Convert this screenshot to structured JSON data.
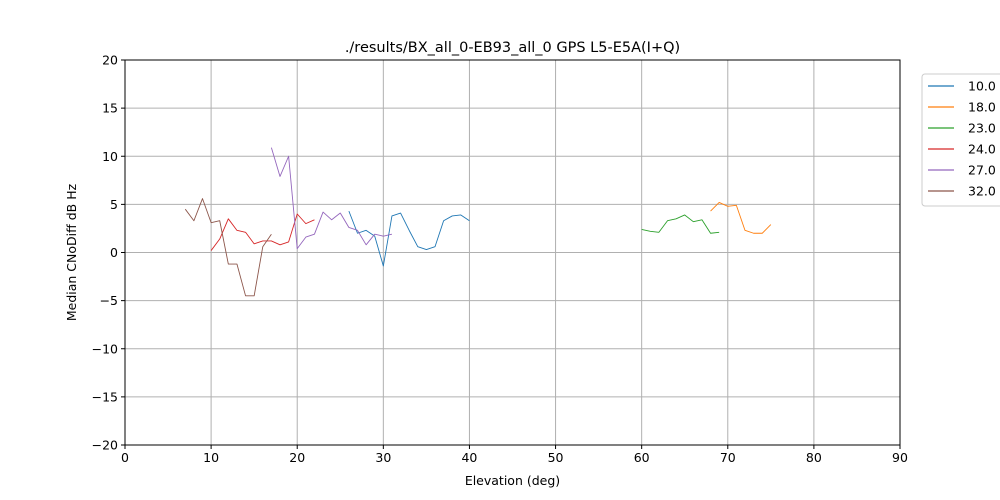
{
  "chart_data": {
    "type": "line",
    "title": "./results/BX_all_0-EB93_all_0 GPS L5-E5A(I+Q)",
    "xlabel": "Elevation (deg)",
    "ylabel": "Median CNoDiff dB Hz",
    "xlim": [
      0,
      90
    ],
    "ylim": [
      -20,
      20
    ],
    "xticks": [
      "0",
      "10",
      "20",
      "30",
      "40",
      "50",
      "60",
      "70",
      "80",
      "90"
    ],
    "yticks": [
      "20",
      "15",
      "10",
      "5",
      "0",
      "−5",
      "−10",
      "−15",
      "−20"
    ],
    "grid": true,
    "legend_position": "outside-top-right",
    "series": [
      {
        "name": "10.0",
        "color": "#1f77b4",
        "x": [
          26,
          27,
          28,
          29,
          30,
          31,
          32,
          33,
          34,
          35,
          36,
          37,
          38,
          39,
          40
        ],
        "y": [
          4.3,
          2.0,
          2.3,
          1.7,
          -1.4,
          3.8,
          4.1,
          2.3,
          0.6,
          0.3,
          0.6,
          3.3,
          3.8,
          3.9,
          3.3
        ]
      },
      {
        "name": "18.0",
        "color": "#ff7f0e",
        "x": [
          68,
          69,
          70,
          71,
          72,
          73,
          74,
          75
        ],
        "y": [
          4.3,
          5.2,
          4.8,
          4.9,
          2.3,
          2.0,
          2.0,
          2.9
        ]
      },
      {
        "name": "23.0",
        "color": "#2ca02c",
        "x": [
          60,
          61,
          62,
          63,
          64,
          65,
          66,
          67,
          68,
          69
        ],
        "y": [
          2.4,
          2.2,
          2.1,
          3.3,
          3.5,
          3.9,
          3.2,
          3.4,
          2.0,
          2.1
        ]
      },
      {
        "name": "24.0",
        "color": "#d62728",
        "x": [
          10,
          11,
          12,
          13,
          14,
          15,
          16,
          17,
          18,
          19,
          20,
          21,
          22
        ],
        "y": [
          0.2,
          1.4,
          3.5,
          2.3,
          2.1,
          0.9,
          1.2,
          1.2,
          0.8,
          1.1,
          4.0,
          3.0,
          3.4
        ]
      },
      {
        "name": "27.0",
        "color": "#9467bd",
        "x": [
          17,
          18,
          19,
          20,
          21,
          22,
          23,
          24,
          25,
          26,
          27,
          28,
          29,
          30,
          31
        ],
        "y": [
          10.9,
          7.9,
          10.0,
          0.4,
          1.6,
          1.9,
          4.2,
          3.4,
          4.1,
          2.6,
          2.3,
          0.8,
          1.9,
          1.7,
          1.9
        ]
      },
      {
        "name": "32.0",
        "color": "#8c564b",
        "x": [
          7,
          8,
          9,
          10,
          11,
          12,
          13,
          14,
          15,
          16,
          17
        ],
        "y": [
          4.5,
          3.3,
          5.6,
          3.1,
          3.3,
          -1.2,
          -1.2,
          -4.5,
          -4.5,
          0.6,
          1.9
        ]
      }
    ]
  }
}
